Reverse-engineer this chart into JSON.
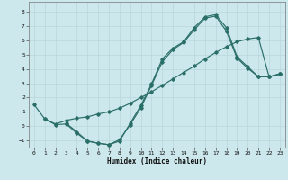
{
  "xlabel": "Humidex (Indice chaleur)",
  "xlim": [
    -0.5,
    23.5
  ],
  "ylim": [
    -1.5,
    8.7
  ],
  "xticks": [
    0,
    1,
    2,
    3,
    4,
    5,
    6,
    7,
    8,
    9,
    10,
    11,
    12,
    13,
    14,
    15,
    16,
    17,
    18,
    19,
    20,
    21,
    22,
    23
  ],
  "yticks": [
    -1,
    0,
    1,
    2,
    3,
    4,
    5,
    6,
    7,
    8
  ],
  "bg_color": "#cce8ec",
  "grid_color": "#b8d8dc",
  "line_color": "#2a6e68",
  "line1_x": [
    0,
    1,
    2,
    3,
    4,
    5,
    6,
    7,
    8,
    9,
    10,
    11,
    12,
    13,
    14,
    15,
    16,
    17,
    18,
    19,
    20,
    21,
    22,
    23
  ],
  "line1_y": [
    1.5,
    0.5,
    0.15,
    0.4,
    0.55,
    0.65,
    0.85,
    1.0,
    1.25,
    1.6,
    2.0,
    2.4,
    2.85,
    3.3,
    3.75,
    4.2,
    4.7,
    5.15,
    5.55,
    5.9,
    6.1,
    6.2,
    3.45,
    3.65
  ],
  "line2_x": [
    1,
    2,
    3,
    4,
    5,
    6,
    7,
    8,
    9,
    10,
    11,
    12,
    13,
    14,
    15,
    16,
    17,
    18,
    19,
    20,
    21,
    22,
    23
  ],
  "line2_y": [
    0.5,
    0.1,
    0.15,
    -0.5,
    -1.05,
    -1.2,
    -1.3,
    -1.05,
    0.2,
    1.45,
    2.95,
    4.7,
    5.45,
    5.9,
    6.9,
    7.65,
    7.8,
    6.9,
    4.85,
    4.15,
    3.45,
    3.45,
    3.65
  ],
  "line3_x": [
    3,
    4,
    5,
    6,
    7,
    8,
    9,
    10,
    11,
    12,
    13,
    14,
    15,
    16,
    17,
    18,
    19,
    20,
    21,
    22,
    23
  ],
  "line3_y": [
    0.2,
    -0.4,
    -1.05,
    -1.2,
    -1.3,
    -0.95,
    0.1,
    1.3,
    2.85,
    4.5,
    5.35,
    5.85,
    6.75,
    7.55,
    7.7,
    6.65,
    4.75,
    4.05,
    3.45,
    3.45,
    3.65
  ]
}
